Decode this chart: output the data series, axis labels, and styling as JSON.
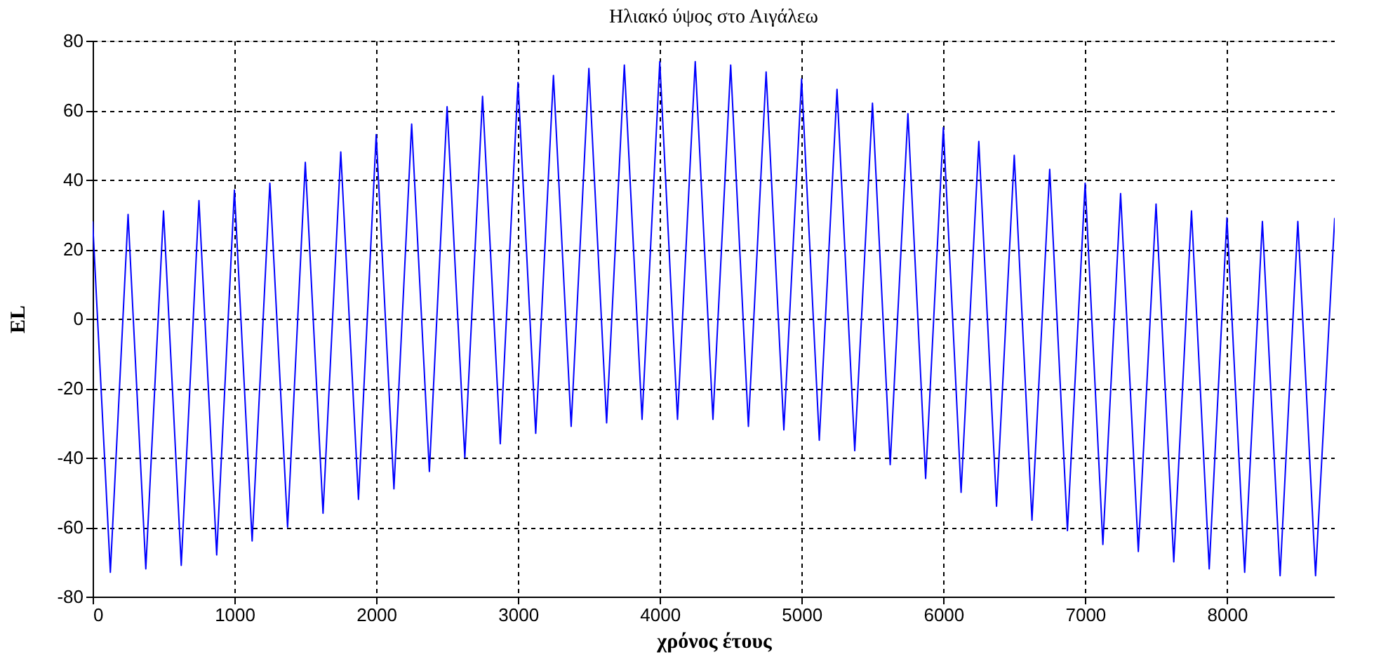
{
  "chart_data": {
    "type": "line",
    "title": "Ηλιακό ύψος στο Αιγάλεω",
    "xlabel": "χρόνος έτους",
    "ylabel": "EL",
    "xlim": [
      0,
      8760
    ],
    "xticks": [
      0,
      1000,
      2000,
      3000,
      4000,
      5000,
      6000,
      7000,
      8000
    ],
    "ylim": [
      -80,
      80
    ],
    "yticks": [
      -80,
      -60,
      -40,
      -20,
      0,
      20,
      40,
      60,
      80
    ],
    "grid": true,
    "line_style": "solid",
    "x": [
      0,
      125,
      250,
      375,
      500,
      625,
      750,
      875,
      1000,
      1125,
      1250,
      1375,
      1500,
      1625,
      1750,
      1875,
      2000,
      2125,
      2250,
      2375,
      2500,
      2625,
      2750,
      2875,
      3000,
      3125,
      3250,
      3375,
      3500,
      3625,
      3750,
      3875,
      4000,
      4125,
      4250,
      4375,
      4500,
      4625,
      4750,
      4875,
      5000,
      5125,
      5250,
      5375,
      5500,
      5625,
      5750,
      5875,
      6000,
      6125,
      6250,
      6375,
      6500,
      6625,
      6750,
      6875,
      7000,
      7125,
      7250,
      7375,
      7500,
      7625,
      7750,
      7875,
      8000,
      8125,
      8250,
      8375,
      8500,
      8625,
      8760
    ],
    "series": [
      {
        "color": "#0000ff",
        "values": [
          28,
          -73,
          30,
          -72,
          31,
          -71,
          34,
          -68,
          37,
          -64,
          39,
          -60,
          45,
          -56,
          48,
          -52,
          53,
          -49,
          56,
          -44,
          61,
          -40,
          64,
          -36,
          68,
          -33,
          70,
          -31,
          72,
          -30,
          73,
          -29,
          74,
          -29,
          74,
          -29,
          73,
          -31,
          71,
          -32,
          69,
          -35,
          66,
          -38,
          62,
          -42,
          59,
          -46,
          55,
          -50,
          51,
          -54,
          47,
          -58,
          43,
          -61,
          39,
          -65,
          36,
          -67,
          33,
          -70,
          31,
          -72,
          29,
          -73,
          28,
          -74,
          28,
          -74,
          29
        ]
      }
    ]
  }
}
